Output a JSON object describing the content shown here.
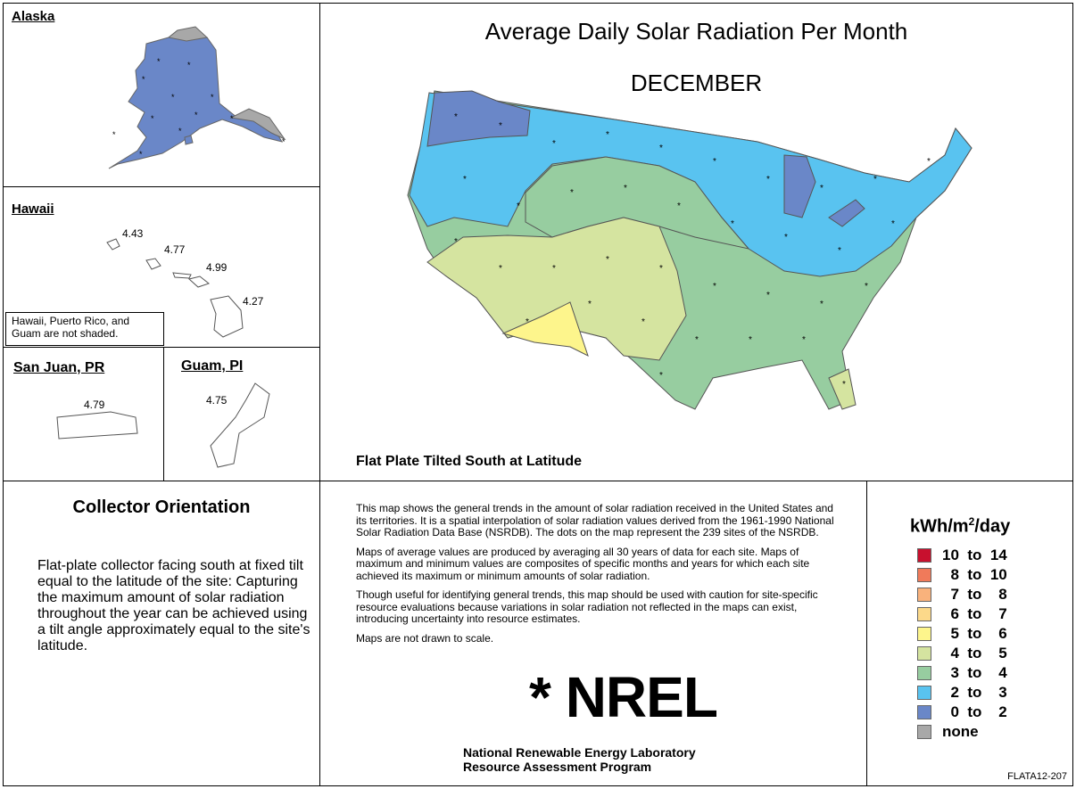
{
  "insets": {
    "alaska": {
      "title": "Alaska"
    },
    "hawaii": {
      "title": "Hawaii",
      "values": [
        "4.43",
        "4.77",
        "4.99",
        "4.27"
      ],
      "note": "Hawaii, Puerto Rico, and Guam are not shaded."
    },
    "san_juan": {
      "title": "San Juan, PR",
      "value": "4.79"
    },
    "guam": {
      "title": "Guam, PI",
      "value": "4.75"
    }
  },
  "map": {
    "title": "Average Daily Solar Radiation Per Month",
    "month": "DECEMBER",
    "caption": "Flat Plate Tilted South at Latitude"
  },
  "orientation": {
    "title": "Collector Orientation",
    "body": "Flat-plate collector facing south at fixed tilt equal to the latitude of the site:  Capturing the maximum amount of solar radiation throughout the year can be achieved using a tilt angle approximately equal to the site's latitude."
  },
  "description": {
    "p1": "This map shows the general trends in the amount of solar radiation received in the United States and its territories.  It is a spatial interpolation of solar radiation values derived from the 1961-1990 National Solar Radiation Data Base (NSRDB).  The dots on the map represent the 239 sites of the NSRDB.",
    "p2": "Maps of average values are produced by averaging all 30 years of data for each site. Maps of maximum and minimum values are composites of specific months and years for which each site achieved its maximum or minimum amounts of solar radiation.",
    "p3": "Though useful for identifying general trends, this map should be used with caution for site-specific resource evaluations because variations in solar radiation not reflected in the maps can exist, introducing uncertainty into resource estimates.",
    "p4": "Maps are not drawn to scale."
  },
  "logo": {
    "text": "* NREL"
  },
  "lab": {
    "line1": "National Renewable Energy Laboratory",
    "line2": "Resource Assessment Program"
  },
  "legend": {
    "title_prefix": "kWh/m",
    "title_sup": "2",
    "title_suffix": "/day",
    "items": [
      {
        "label": "10  to  14",
        "color": "#c8102e"
      },
      {
        "label": "  8  to  10",
        "color": "#f07a5a"
      },
      {
        "label": "  7  to    8",
        "color": "#f9b27c"
      },
      {
        "label": "  6  to    7",
        "color": "#fcd98a"
      },
      {
        "label": "  5  to    6",
        "color": "#fdf58c"
      },
      {
        "label": "  4  to    5",
        "color": "#d5e4a0"
      },
      {
        "label": "  3  to    4",
        "color": "#97cda0"
      },
      {
        "label": "  2  to    3",
        "color": "#59c3f0"
      },
      {
        "label": "  0  to    2",
        "color": "#6a87c8"
      },
      {
        "label": "none",
        "color": "#a8a8a8"
      }
    ]
  },
  "map_id": "FLATA12-207"
}
